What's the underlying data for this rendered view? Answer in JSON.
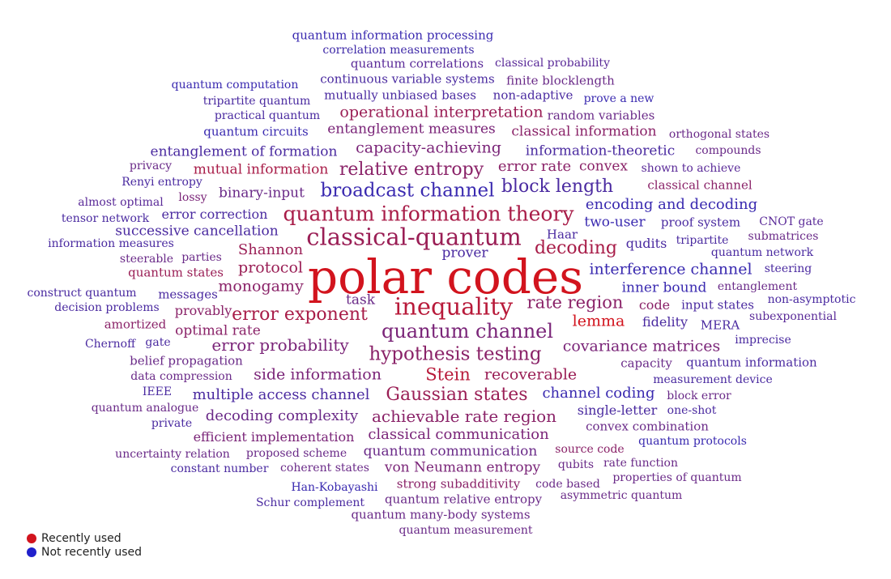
{
  "legend": {
    "recent_label": "Recently used",
    "recent_color": "#d2141e",
    "not_recent_label": "Not recently used",
    "not_recent_color": "#2020cc"
  },
  "words": [
    {
      "t": "quantum information processing",
      "c": "#3a2ab0"
    },
    {
      "t": "correlation measurements",
      "c": "#3f2aa8"
    },
    {
      "t": "quantum correlations",
      "c": "#5a2a98"
    },
    {
      "t": "classical probability",
      "c": "#5a2a98"
    },
    {
      "t": "quantum computation",
      "c": "#3a2ab0"
    },
    {
      "t": "continuous variable systems",
      "c": "#4a2aa0"
    },
    {
      "t": "finite blocklength",
      "c": "#6a2a88"
    },
    {
      "t": "tripartite quantum",
      "c": "#4a2aa0"
    },
    {
      "t": "mutually unbiased bases",
      "c": "#4a2aa0"
    },
    {
      "t": "non-adaptive",
      "c": "#4a2aa0"
    },
    {
      "t": "prove a new",
      "c": "#3a2ab0"
    },
    {
      "t": "practical quantum",
      "c": "#4a2aa0"
    },
    {
      "t": "operational interpretation",
      "c": "#9a1e55"
    },
    {
      "t": "random variables",
      "c": "#6a2a88"
    },
    {
      "t": "quantum circuits",
      "c": "#3a2ab0"
    },
    {
      "t": "entanglement measures",
      "c": "#7a2478"
    },
    {
      "t": "classical information",
      "c": "#8a2268"
    },
    {
      "t": "orthogonal states",
      "c": "#6a2a88"
    },
    {
      "t": "entanglement of formation",
      "c": "#4a2aa0"
    },
    {
      "t": "capacity-achieving",
      "c": "#7a2478"
    },
    {
      "t": "information-theoretic",
      "c": "#4a2aa0"
    },
    {
      "t": "compounds",
      "c": "#6a2a88"
    },
    {
      "t": "privacy",
      "c": "#6a2a88"
    },
    {
      "t": "mutual information",
      "c": "#a81c48"
    },
    {
      "t": "relative entropy",
      "c": "#8a2268"
    },
    {
      "t": "error rate",
      "c": "#8a2268"
    },
    {
      "t": "convex",
      "c": "#8a2268"
    },
    {
      "t": "shown to achieve",
      "c": "#5a2a98"
    },
    {
      "t": "Renyi entropy",
      "c": "#4a2aa0"
    },
    {
      "t": "classical channel",
      "c": "#8a2268"
    },
    {
      "t": "almost optimal",
      "c": "#5a2a98"
    },
    {
      "t": "lossy",
      "c": "#7a2478"
    },
    {
      "t": "binary-input",
      "c": "#6a2a88"
    },
    {
      "t": "broadcast channel",
      "c": "#3a2ab0"
    },
    {
      "t": "block length",
      "c": "#4a2aa0"
    },
    {
      "t": "encoding and decoding",
      "c": "#3a2ab0"
    },
    {
      "t": "tensor network",
      "c": "#4a2aa0"
    },
    {
      "t": "error correction",
      "c": "#4a2aa0"
    },
    {
      "t": "quantum information theory",
      "c": "#a81c48"
    },
    {
      "t": "two-user",
      "c": "#3a2ab0"
    },
    {
      "t": "proof system",
      "c": "#4a2aa0"
    },
    {
      "t": "CNOT gate",
      "c": "#5a2a98"
    },
    {
      "t": "successive cancellation",
      "c": "#4a2aa0"
    },
    {
      "t": "Haar",
      "c": "#4a2aa0"
    },
    {
      "t": "tripartite",
      "c": "#4a2aa0"
    },
    {
      "t": "submatrices",
      "c": "#6a2a88"
    },
    {
      "t": "information measures",
      "c": "#4a2aa0"
    },
    {
      "t": "classical-quantum",
      "c": "#9a1e55"
    },
    {
      "t": "qudits",
      "c": "#4a2aa0"
    },
    {
      "t": "quantum network",
      "c": "#4a2aa0"
    },
    {
      "t": "steerable",
      "c": "#6a2a88"
    },
    {
      "t": "parties",
      "c": "#6a2a88"
    },
    {
      "t": "Shannon",
      "c": "#9a1e55"
    },
    {
      "t": "prover",
      "c": "#4a2aa0"
    },
    {
      "t": "decoding",
      "c": "#a81c48"
    },
    {
      "t": "quantum states",
      "c": "#9a1e55"
    },
    {
      "t": "protocol",
      "c": "#9a1e55"
    },
    {
      "t": "polar codes",
      "c": "#d2141e"
    },
    {
      "t": "interference channel",
      "c": "#3a2ab0"
    },
    {
      "t": "steering",
      "c": "#4a2aa0"
    },
    {
      "t": "construct quantum",
      "c": "#4a2aa0"
    },
    {
      "t": "messages",
      "c": "#4a2aa0"
    },
    {
      "t": "monogamy",
      "c": "#8a2268"
    },
    {
      "t": "inner bound",
      "c": "#3a2ab0"
    },
    {
      "t": "entanglement",
      "c": "#6a2a88"
    },
    {
      "t": "decision problems",
      "c": "#4a2aa0"
    },
    {
      "t": "task",
      "c": "#6a2a88"
    },
    {
      "t": "inequality",
      "c": "#b81a3a"
    },
    {
      "t": "rate region",
      "c": "#8a2268"
    },
    {
      "t": "code",
      "c": "#8a2268"
    },
    {
      "t": "input states",
      "c": "#4a2aa0"
    },
    {
      "t": "non-asymptotic",
      "c": "#4a2aa0"
    },
    {
      "t": "provably",
      "c": "#8a2268"
    },
    {
      "t": "error exponent",
      "c": "#a81c48"
    },
    {
      "t": "subexponential",
      "c": "#5a2a98"
    },
    {
      "t": "amortized",
      "c": "#8a2268"
    },
    {
      "t": "lemma",
      "c": "#d2141e"
    },
    {
      "t": "fidelity",
      "c": "#4a2aa0"
    },
    {
      "t": "MERA",
      "c": "#4a2aa0"
    },
    {
      "t": "optimal rate",
      "c": "#8a2268"
    },
    {
      "t": "quantum channel",
      "c": "#7a2478"
    },
    {
      "t": "imprecise",
      "c": "#4a2aa0"
    },
    {
      "t": "Chernoff",
      "c": "#4a2aa0"
    },
    {
      "t": "gate",
      "c": "#4a2aa0"
    },
    {
      "t": "error probability",
      "c": "#7a2478"
    },
    {
      "t": "covariance matrices",
      "c": "#7a2478"
    },
    {
      "t": "hypothesis testing",
      "c": "#8a2268"
    },
    {
      "t": "belief propagation",
      "c": "#6a2a88"
    },
    {
      "t": "capacity",
      "c": "#6a2a88"
    },
    {
      "t": "quantum information",
      "c": "#4a2aa0"
    },
    {
      "t": "data compression",
      "c": "#6a2a88"
    },
    {
      "t": "side information",
      "c": "#7a2478"
    },
    {
      "t": "Stein",
      "c": "#b81a3a"
    },
    {
      "t": "recoverable",
      "c": "#9a1e55"
    },
    {
      "t": "measurement device",
      "c": "#4a2aa0"
    },
    {
      "t": "IEEE",
      "c": "#4a2aa0"
    },
    {
      "t": "multiple access channel",
      "c": "#4a2aa0"
    },
    {
      "t": "Gaussian states",
      "c": "#9a1e55"
    },
    {
      "t": "channel coding",
      "c": "#3a2ab0"
    },
    {
      "t": "block error",
      "c": "#6a2a88"
    },
    {
      "t": "quantum analogue",
      "c": "#6a2a88"
    },
    {
      "t": "single-letter",
      "c": "#4a2aa0"
    },
    {
      "t": "one-shot",
      "c": "#4a2aa0"
    },
    {
      "t": "private",
      "c": "#4a2aa0"
    },
    {
      "t": "decoding complexity",
      "c": "#6a2a88"
    },
    {
      "t": "achievable rate region",
      "c": "#8a2268"
    },
    {
      "t": "convex combination",
      "c": "#6a2a88"
    },
    {
      "t": "efficient implementation",
      "c": "#7a2478"
    },
    {
      "t": "classical communication",
      "c": "#7a2478"
    },
    {
      "t": "quantum protocols",
      "c": "#3a2ab0"
    },
    {
      "t": "uncertainty relation",
      "c": "#6a2a88"
    },
    {
      "t": "proposed scheme",
      "c": "#6a2a88"
    },
    {
      "t": "quantum communication",
      "c": "#6a2a88"
    },
    {
      "t": "source code",
      "c": "#8a2268"
    },
    {
      "t": "constant number",
      "c": "#4a2aa0"
    },
    {
      "t": "coherent states",
      "c": "#6a2a88"
    },
    {
      "t": "von Neumann entropy",
      "c": "#7a2478"
    },
    {
      "t": "qubits",
      "c": "#6a2a88"
    },
    {
      "t": "rate function",
      "c": "#6a2a88"
    },
    {
      "t": "properties of quantum",
      "c": "#6a2a88"
    },
    {
      "t": "Han-Kobayashi",
      "c": "#3a2ab0"
    },
    {
      "t": "strong subadditivity",
      "c": "#8a2268"
    },
    {
      "t": "code based",
      "c": "#6a2a88"
    },
    {
      "t": "asymmetric quantum",
      "c": "#6a2a88"
    },
    {
      "t": "Schur complement",
      "c": "#4a2aa0"
    },
    {
      "t": "quantum relative entropy",
      "c": "#6a2a88"
    },
    {
      "t": "quantum many-body systems",
      "c": "#6a2a88"
    },
    {
      "t": "quantum measurement",
      "c": "#6a2a88"
    }
  ]
}
